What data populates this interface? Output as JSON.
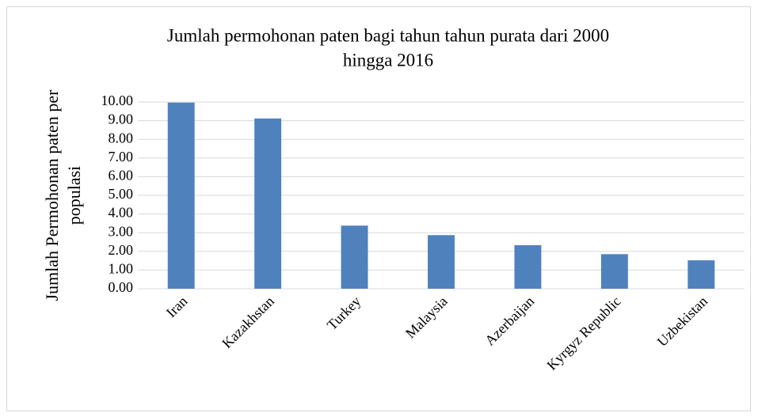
{
  "chart_data": {
    "type": "bar",
    "title": [
      "Jumlah permohonan paten bagi tahun tahun purata dari 2000",
      "hingga 2016"
    ],
    "y_label": [
      "Jumlah Permohonan paten per",
      "populasi"
    ],
    "categories": [
      "Iran",
      "Kazakhstan",
      "Turkey",
      "Malaysia",
      "Azerbaijan",
      "Kyrgyz Republic",
      "Uzbekistan"
    ],
    "values": [
      9.97,
      9.12,
      3.38,
      2.87,
      2.33,
      1.85,
      1.52
    ],
    "color": "#4f81bd",
    "ylim": [
      0,
      10
    ],
    "yticks": [
      {
        "value": 0,
        "label": "0.00"
      },
      {
        "value": 1,
        "label": "1.00"
      },
      {
        "value": 2,
        "label": "2.00"
      },
      {
        "value": 3,
        "label": "3.00"
      },
      {
        "value": 4,
        "label": "4.00"
      },
      {
        "value": 5,
        "label": "5.00"
      },
      {
        "value": 6,
        "label": "6.00"
      },
      {
        "value": 7,
        "label": "7.00"
      },
      {
        "value": 8,
        "label": "8.00"
      },
      {
        "value": 9,
        "label": "9.00"
      },
      {
        "value": 10,
        "label": "10.00"
      }
    ],
    "grid": true
  }
}
